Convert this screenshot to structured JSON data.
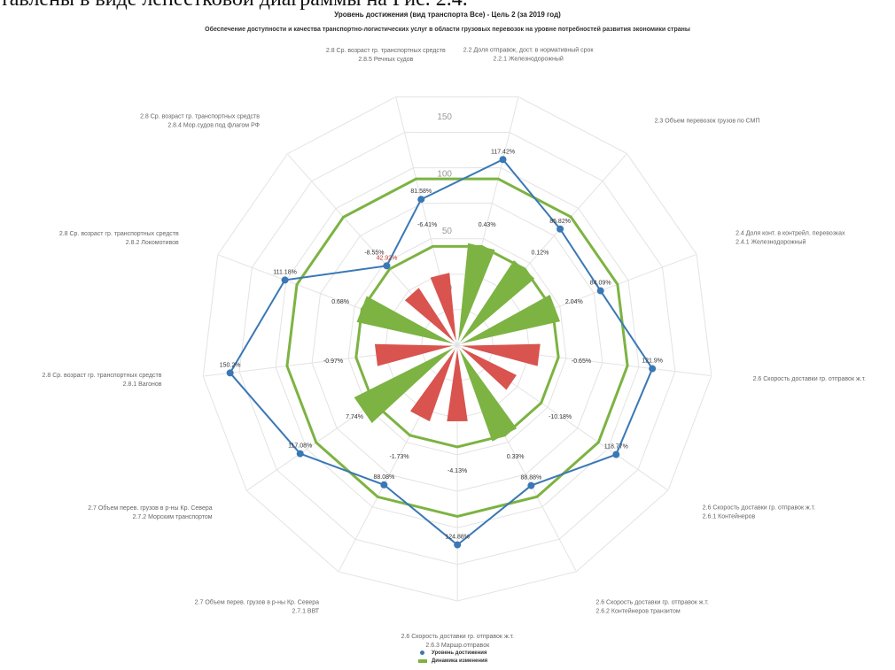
{
  "page": {
    "top_text": "тавлены в виде лепестковой диаграммы на Рис. 2.4."
  },
  "chart_data": {
    "type": "radar",
    "title": "Уровень достижения (вид транспорта Все) - Цель 2 (за 2019 год)",
    "subtitle": "Обеспечение доступности и качества транспортно-логистических услуг в области грузовых перевозок на уровне потребностей развития экономики страны",
    "radial_ticks": [
      "0",
      "50",
      "100",
      "150"
    ],
    "rlim": [
      -50,
      150
    ],
    "categories": [
      [
        "2.2 Доля отправок, дост. в нормативный срок",
        "2.2.1 Железнодорожный"
      ],
      [
        "2.3 Объем перевозок грузов по СМП"
      ],
      [
        "2.4 Доля конт. в контрейл. перевозках",
        "2.4.1 Железнодорожный"
      ],
      [
        "2.6 Скорость доставки гр. отправок ж.т."
      ],
      [
        "2.6 Скорость доставки гр. отправок ж.т.",
        "2.6.1 Контейнеров"
      ],
      [
        "2.6 Скорость доставки гр. отправок ж.т.",
        "2.6.2 Контейнеров транзитом"
      ],
      [
        "2.6 Скорость доставки гр. отправок ж.т.",
        "2.6.3 Маршр.отправок"
      ],
      [
        "2.7 Объем перев. грузов в р-ны Кр. Севера",
        "2.7.1 ВВТ"
      ],
      [
        "2.7 Объем перев. грузов в р-ны Кр. Севера",
        "2.7.2 Морским транспортом"
      ],
      [
        "2.8 Ср. возраст гр. транспортных средств",
        "2.8.1 Вагонов"
      ],
      [
        "2.8 Ср. возраст гр. транспортных средств",
        "2.8.2 Локомотивов"
      ],
      [
        "2.8 Ср. возраст гр. транспортных средств",
        "2.8.4 Мор.судов под флагом РФ"
      ],
      [
        "2.8 Ср. возраст гр. транспортных средств",
        "2.8.5 Речных судов"
      ]
    ],
    "series": [
      {
        "name": "Уровень достижения",
        "color": "#3a78b5",
        "values": [
          117.42,
          85.82,
          84.09,
          121.9,
          118.77,
          88.88,
          124.88,
          88.08,
          117.08,
          150.2,
          111.18,
          42.92,
          81.58
        ],
        "labels": [
          "117.42%",
          "85.82%",
          "84.09%",
          "121.9%",
          "118.77%",
          "88.88%",
          "124.88%",
          "88.08%",
          "117.08%",
          "150.2%",
          "111.18%",
          "42.92%",
          "81.58%"
        ]
      },
      {
        "name": "Динамика изменения",
        "color": "#7cb342",
        "negative_color": "#d9534f",
        "values": [
          0.43,
          0.12,
          2.04,
          -0.65,
          -10.18,
          0.33,
          -4.13,
          -1.73,
          7.74,
          -0.97,
          0.68,
          -8.55,
          -6.41
        ],
        "labels": [
          "0.43%",
          "0.12%",
          "2.04%",
          "-0.65%",
          "-10.18%",
          "0.33%",
          "-4.13%",
          "-1.73%",
          "7.74%",
          "-0.97%",
          "0.68%",
          "-8.55%",
          "-6.41%"
        ]
      }
    ],
    "legend": [
      "Уровень достижения",
      "Динамика изменения"
    ],
    "legend_position": "bottom"
  }
}
